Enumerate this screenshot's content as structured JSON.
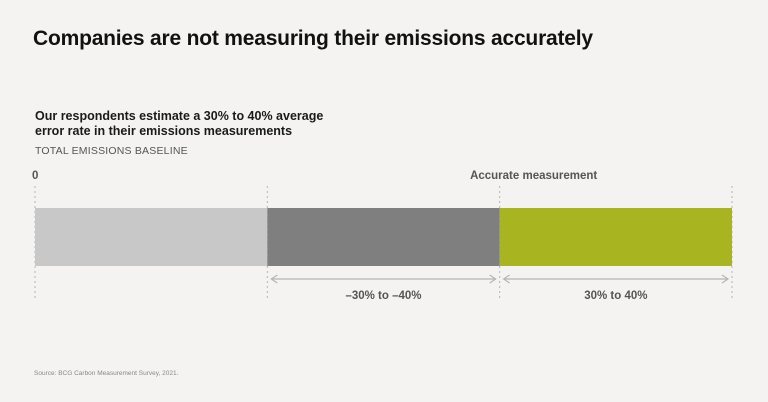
{
  "title": "Companies are not measuring their emissions accurately",
  "subtitle": "Our respondents estimate a 30% to 40% average error rate in their emissions measurements",
  "caption": "TOTAL EMISSIONS BASELINE",
  "source": "Source: BCG Carbon Measurement Survey, 2021.",
  "chart_data": {
    "type": "bar",
    "orientation": "horizontal",
    "stacked": true,
    "axis_labels": [
      {
        "text": "0",
        "x": 0
      },
      {
        "text": "Accurate measurement",
        "x": 2
      }
    ],
    "segments": [
      {
        "start": 0,
        "end": 1,
        "color": "#c8c8c8"
      },
      {
        "start": 1,
        "end": 2,
        "color": "#7f7f7f"
      },
      {
        "start": 2,
        "end": 3,
        "color": "#a8b420"
      }
    ],
    "ranges": [
      {
        "label": "–30% to –40%",
        "start": 1,
        "end": 2
      },
      {
        "label": "30% to 40%",
        "start": 2,
        "end": 3
      }
    ],
    "gridlines": [
      0,
      1,
      2,
      3
    ],
    "xlim": [
      0,
      3
    ]
  }
}
